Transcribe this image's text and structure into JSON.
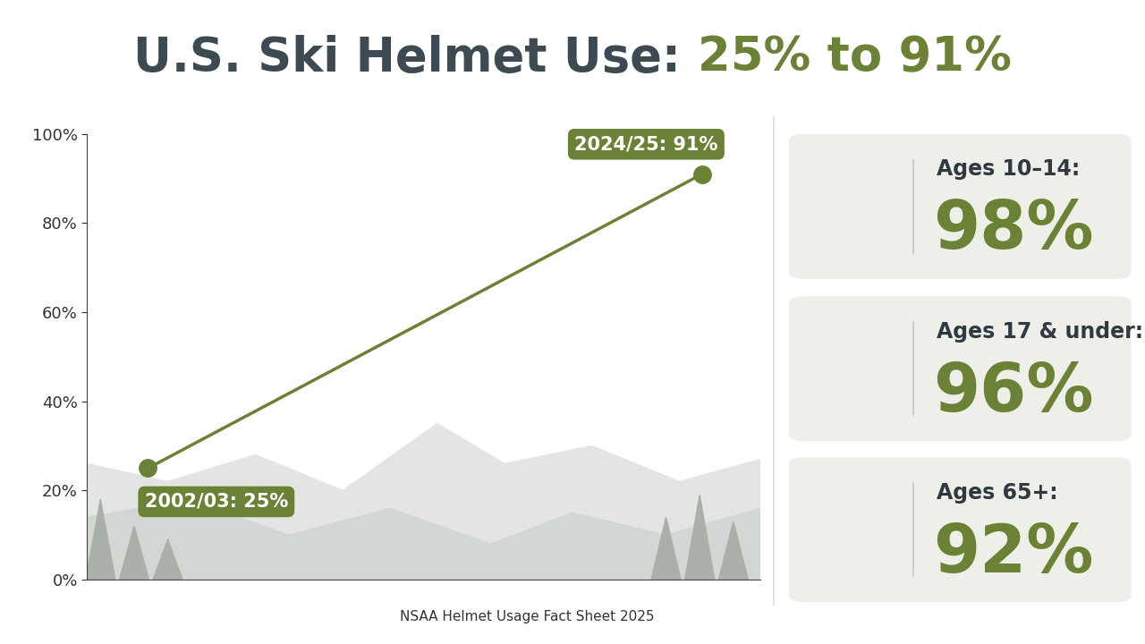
{
  "chart_data": {
    "type": "line",
    "title": "U.S. Ski Helmet Use: 25% to 91%",
    "categories": [
      "2002/03",
      "2024/25"
    ],
    "values": [
      25,
      91
    ],
    "color": "#6b8136",
    "marker": "o",
    "ylim": [
      0,
      100
    ],
    "yticks": [
      {
        "value": 0,
        "label": "0%"
      },
      {
        "value": 20,
        "label": "20%"
      },
      {
        "value": 40,
        "label": "40%"
      },
      {
        "value": 60,
        "label": "60%"
      },
      {
        "value": 80,
        "label": "80%"
      },
      {
        "value": 100,
        "label": "100%"
      }
    ],
    "tick_labels": "y",
    "annotations": [
      "2002/03: 25%",
      "2024/25: 91%"
    ],
    "source": "NSAA Helmet Usage Fact Sheet 2025"
  },
  "panels": [
    {
      "label": "Ages 10–14:",
      "value_label": "98%"
    },
    {
      "label": "Ages 17 & under:",
      "value_label": "96%"
    },
    {
      "label": "Ages 65+:",
      "value_label": "92%"
    }
  ]
}
